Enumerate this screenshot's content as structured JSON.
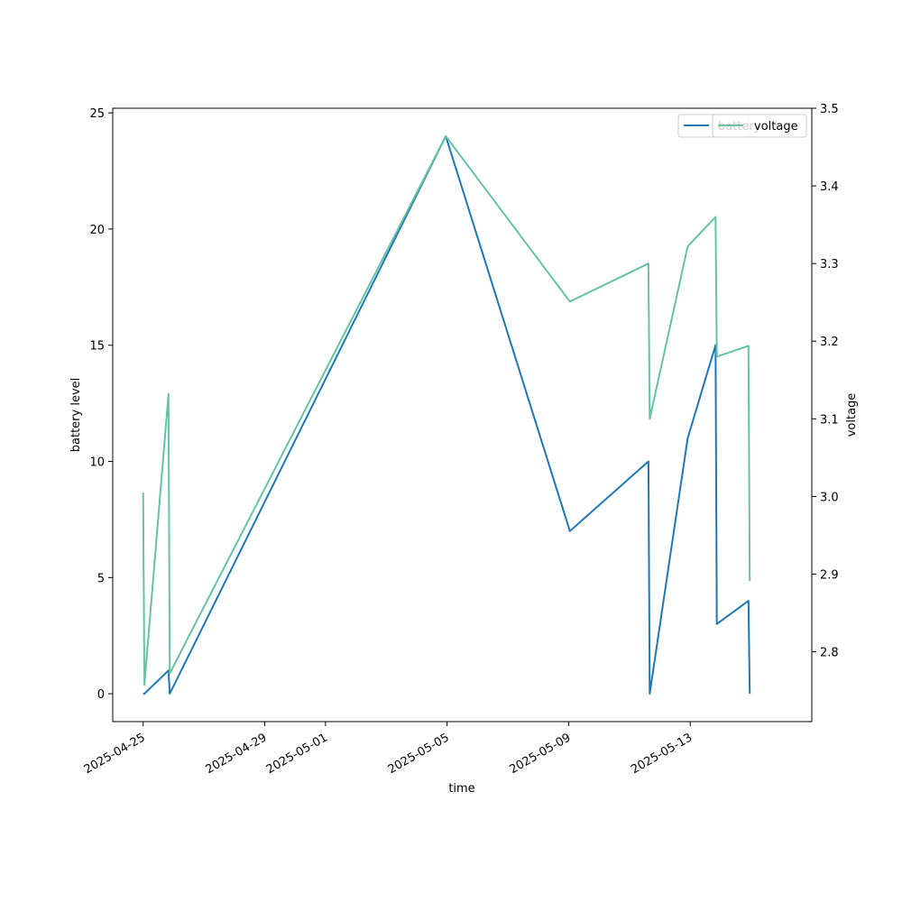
{
  "chart_data": {
    "type": "line",
    "xlabel": "time",
    "ylabel": "battery level",
    "y2label": "voltage",
    "x_ticks": [
      "2025-04-25",
      "2025-04-29",
      "2025-05-01",
      "2025-05-05",
      "2025-05-09",
      "2025-05-13"
    ],
    "xlim": [
      "2025-04-24",
      "2025-05-17"
    ],
    "ylim": [
      -1.2,
      25.2
    ],
    "y_ticks": [
      0,
      5,
      10,
      15,
      20,
      25
    ],
    "y2lim": [
      2.71,
      3.5
    ],
    "y2_ticks": [
      2.8,
      2.9,
      3.0,
      3.1,
      3.2,
      3.3,
      3.4,
      3.5
    ],
    "legend_position": "top-right",
    "series": [
      {
        "name": "battery",
        "axis": "left",
        "color": "#1f77b4",
        "points": [
          {
            "x": "2025-04-25 00:00",
            "y": 0
          },
          {
            "x": "2025-04-25 01:00",
            "y": 0
          },
          {
            "x": "2025-04-25 20:00",
            "y": 1
          },
          {
            "x": "2025-04-25 21:00",
            "y": 0
          },
          {
            "x": "2025-05-04 23:00",
            "y": 24
          },
          {
            "x": "2025-05-09 01:00",
            "y": 7
          },
          {
            "x": "2025-05-11 15:00",
            "y": 10
          },
          {
            "x": "2025-05-11 16:00",
            "y": 0
          },
          {
            "x": "2025-05-12 22:00",
            "y": 11
          },
          {
            "x": "2025-05-13 20:00",
            "y": 15
          },
          {
            "x": "2025-05-13 21:00",
            "y": 3
          },
          {
            "x": "2025-05-14 22:00",
            "y": 4
          },
          {
            "x": "2025-05-14 23:00",
            "y": 0
          }
        ]
      },
      {
        "name": "voltage",
        "axis": "right",
        "color": "#66c2a5",
        "points": [
          {
            "x": "2025-04-25 00:00",
            "y": 3.005
          },
          {
            "x": "2025-04-25 01:00",
            "y": 2.757
          },
          {
            "x": "2025-04-25 20:00",
            "y": 3.132
          },
          {
            "x": "2025-04-25 21:00",
            "y": 2.772
          },
          {
            "x": "2025-05-04 23:00",
            "y": 3.464
          },
          {
            "x": "2025-05-09 01:00",
            "y": 3.251
          },
          {
            "x": "2025-05-11 15:00",
            "y": 3.3
          },
          {
            "x": "2025-05-11 16:00",
            "y": 3.1
          },
          {
            "x": "2025-05-12 22:00",
            "y": 3.322
          },
          {
            "x": "2025-05-13 20:00",
            "y": 3.36
          },
          {
            "x": "2025-05-13 21:00",
            "y": 3.18
          },
          {
            "x": "2025-05-14 22:00",
            "y": 3.194
          },
          {
            "x": "2025-05-14 23:00",
            "y": 2.891
          }
        ]
      }
    ]
  }
}
